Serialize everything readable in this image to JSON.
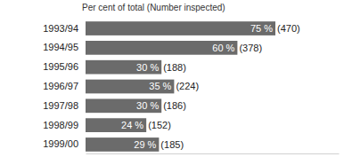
{
  "chart_data": {
    "type": "bar",
    "title": "Per cent of total (Number inspected)",
    "orientation": "horizontal",
    "categories": [
      "1993/94",
      "1994/95",
      "1995/96",
      "1996/97",
      "1997/98",
      "1998/99",
      "1999/00"
    ],
    "values": [
      75,
      60,
      30,
      35,
      30,
      24,
      29
    ],
    "value_labels": [
      "75 %",
      "60 %",
      "30 %",
      "35 %",
      "30 %",
      "24 %",
      "29 %"
    ],
    "data_labels": true,
    "inspected": [
      470,
      378,
      188,
      224,
      186,
      152,
      185
    ],
    "inspected_labels": [
      "(470)",
      "(378)",
      "(188)",
      "(224)",
      "(186)",
      "(152)",
      "(185)"
    ],
    "color": "#6b6b6b",
    "xlim": [
      0,
      100
    ],
    "tick_labels": "y",
    "grid": false
  }
}
